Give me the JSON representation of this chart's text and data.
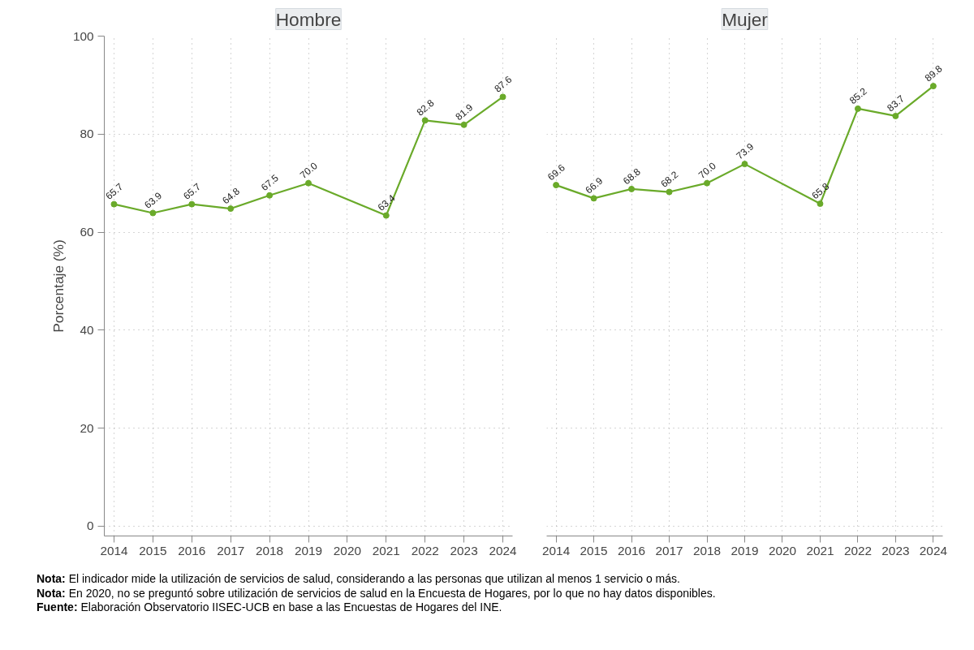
{
  "chart_data": [
    {
      "type": "line",
      "title": "Hombre",
      "ylabel": "Porcentaje (%)",
      "x": [
        2014,
        2015,
        2016,
        2017,
        2018,
        2019,
        2021,
        2022,
        2023,
        2024
      ],
      "series": [
        {
          "color": "#6aaa2a",
          "values": [
            65.7,
            63.9,
            65.7,
            64.8,
            67.5,
            70.0,
            63.4,
            82.8,
            81.9,
            87.6
          ],
          "value_labels": [
            "65.7",
            "63.9",
            "65.7",
            "64.8",
            "67.5",
            "70.0",
            "63.4",
            "82.8",
            "81.9",
            "87.6"
          ]
        }
      ],
      "xlim": [
        2013.75,
        2024.25
      ],
      "ylim": [
        -2,
        100
      ],
      "xticks": [
        2014,
        2015,
        2016,
        2017,
        2018,
        2019,
        2020,
        2021,
        2022,
        2023,
        2024
      ],
      "yticks": [
        0,
        20,
        40,
        60,
        80,
        100
      ],
      "grid": true,
      "marker": "circle",
      "line_style": "solid",
      "annotations": [
        "Nota: El indicador mide la utilización de servicios de salud, considerando a las personas que utilizan al menos 1 servicio o más.",
        "Nota: En 2020, no se preguntó sobre utilización de servicios de salud en la Encuesta de Hogares, por lo que no hay datos disponibles.",
        "Fuente: Elaboración Observatorio IISEC-UCB en base a las Encuestas de Hogares del INE."
      ]
    },
    {
      "type": "line",
      "title": "Mujer",
      "x": [
        2014,
        2015,
        2016,
        2017,
        2018,
        2019,
        2021,
        2022,
        2023,
        2024
      ],
      "series": [
        {
          "color": "#6aaa2a",
          "values": [
            69.6,
            66.9,
            68.8,
            68.2,
            70.0,
            73.9,
            65.8,
            85.2,
            83.7,
            89.8
          ],
          "value_labels": [
            "69.6",
            "66.9",
            "68.8",
            "68.2",
            "70.0",
            "73.9",
            "65.8",
            "85.2",
            "83.7",
            "89.8"
          ]
        }
      ],
      "xlim": [
        2013.75,
        2024.25
      ],
      "ylim": [
        -2,
        100
      ],
      "xticks": [
        2014,
        2015,
        2016,
        2017,
        2018,
        2019,
        2020,
        2021,
        2022,
        2023,
        2024
      ],
      "yticks": [
        0,
        20,
        40,
        60,
        80,
        100
      ],
      "grid": true,
      "marker": "circle",
      "line_style": "solid",
      "tick_labels": "x"
    }
  ]
}
